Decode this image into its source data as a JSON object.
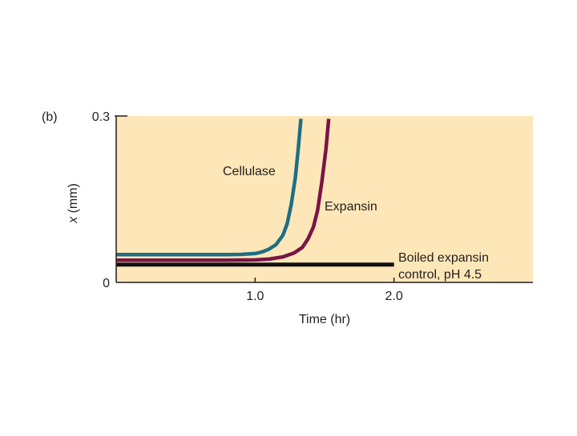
{
  "panel_label": "(b)",
  "colors": {
    "plot_background": "#fde7b8",
    "axis": "#231f20",
    "cellulase": "#1d6e86",
    "expansin": "#7a1446",
    "boiled_control": "#111111"
  },
  "chart_data": {
    "type": "line",
    "title": "",
    "xlabel": "Time (hr)",
    "ylabel_italic": "x",
    "ylabel_rest": " (mm)",
    "xlim": [
      0,
      3.0
    ],
    "ylim": [
      0,
      0.3
    ],
    "x_ticks": [
      {
        "value": 1.0,
        "label": "1.0"
      },
      {
        "value": 2.0,
        "label": "2.0"
      }
    ],
    "y_ticks": [
      {
        "value": 0,
        "label": "0"
      },
      {
        "value": 0.3,
        "label": "0.3"
      }
    ],
    "grid": false,
    "series": [
      {
        "name": "Cellulase",
        "color": "#1d6e86",
        "label_lines": [
          "Cellulase"
        ],
        "x": [
          0.0,
          0.4,
          0.8,
          0.9,
          1.0,
          1.05,
          1.1,
          1.15,
          1.2,
          1.23,
          1.26,
          1.29,
          1.31,
          1.33
        ],
        "y": [
          0.05,
          0.05,
          0.05,
          0.0505,
          0.052,
          0.055,
          0.06,
          0.068,
          0.085,
          0.105,
          0.14,
          0.19,
          0.24,
          0.295
        ]
      },
      {
        "name": "Expansin",
        "color": "#7a1446",
        "label_lines": [
          "Expansin"
        ],
        "x": [
          0.0,
          0.4,
          0.8,
          1.0,
          1.1,
          1.2,
          1.28,
          1.34,
          1.38,
          1.42,
          1.45,
          1.48,
          1.51,
          1.53
        ],
        "y": [
          0.04,
          0.04,
          0.04,
          0.0405,
          0.042,
          0.046,
          0.053,
          0.063,
          0.078,
          0.1,
          0.13,
          0.18,
          0.24,
          0.295
        ]
      },
      {
        "name": "Boiled expansin control, pH 4.5",
        "color": "#111111",
        "label_lines": [
          "Boiled expansin",
          "control, pH 4.5"
        ],
        "x": [
          0.0,
          2.0
        ],
        "y": [
          0.032,
          0.032
        ]
      }
    ]
  }
}
